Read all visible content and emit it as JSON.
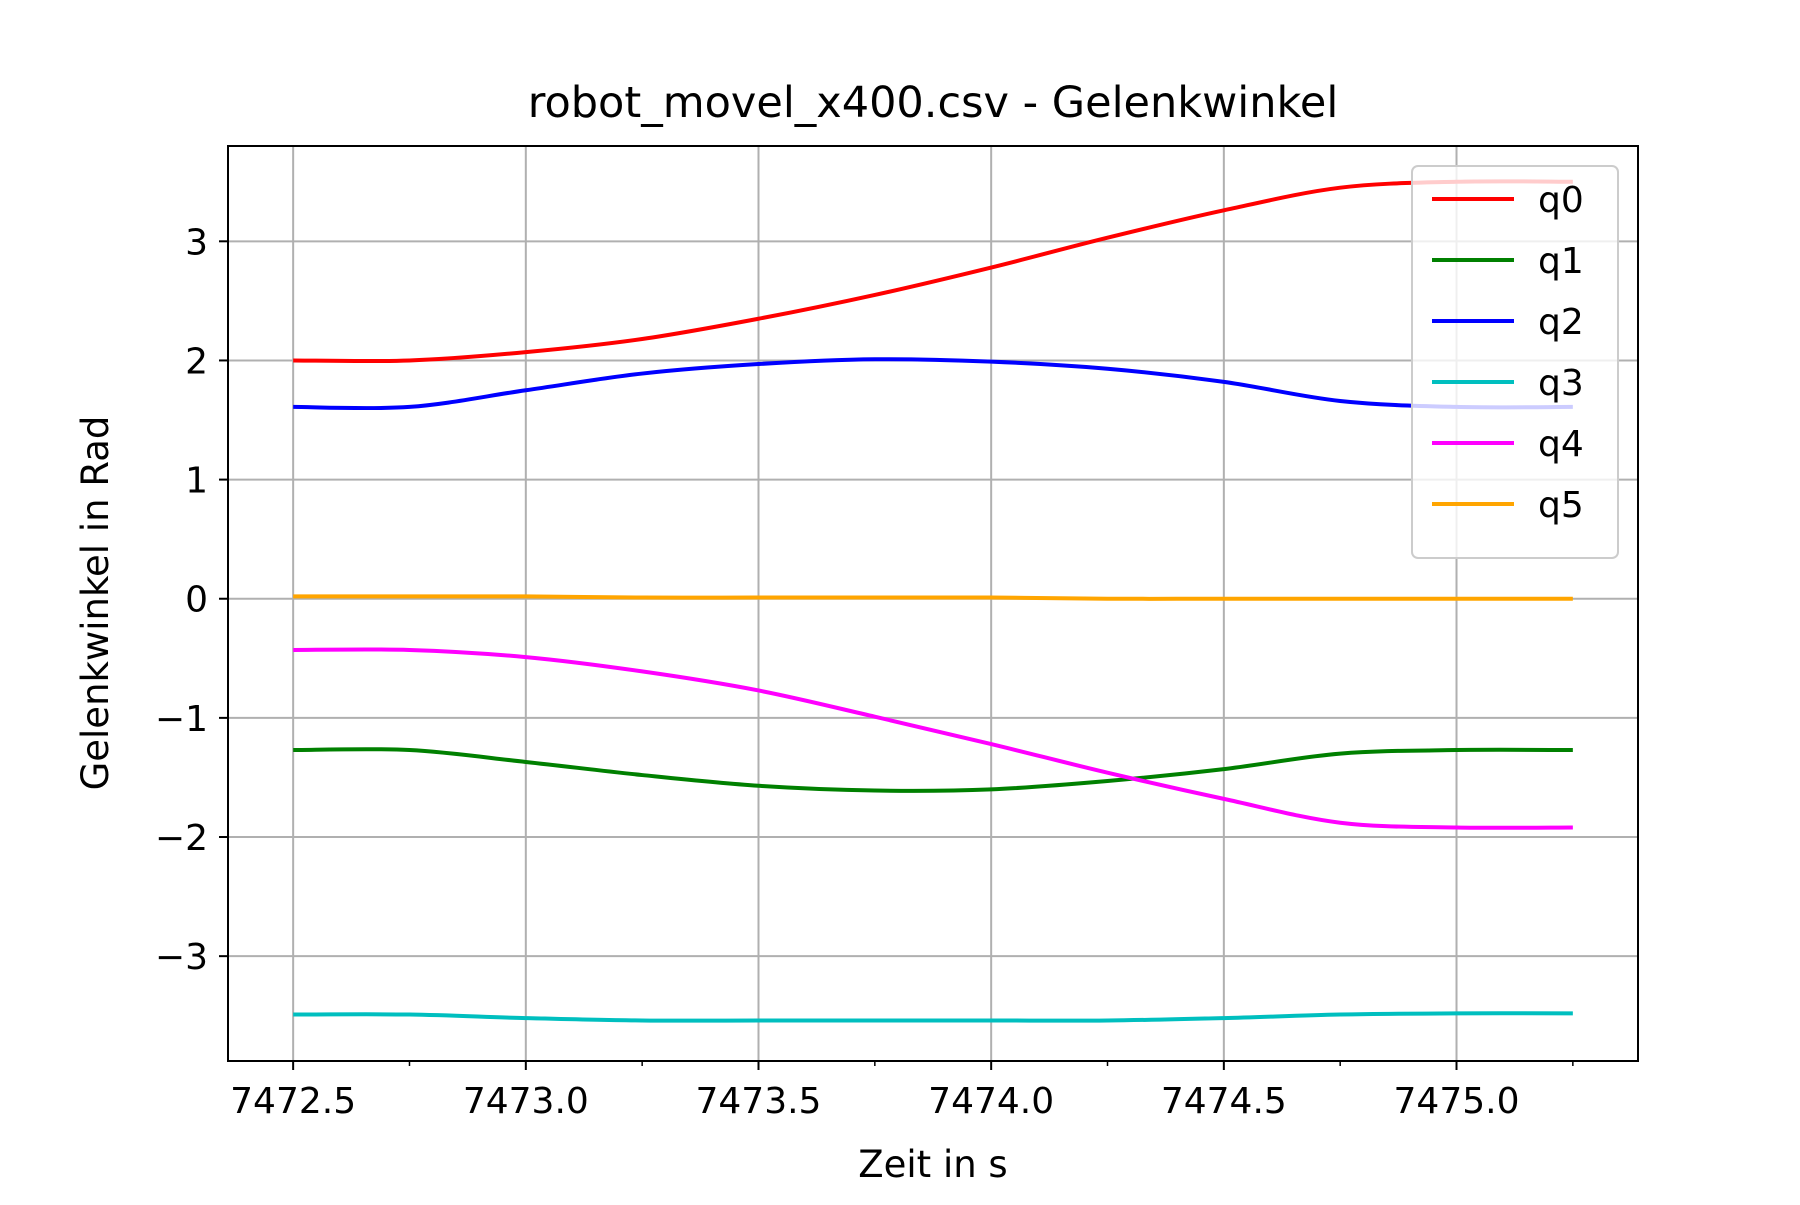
{
  "chart_data": {
    "type": "line",
    "title": "robot_movel_x400.csv - Gelenkwinkel",
    "xlabel": "Zeit in s",
    "ylabel": "Gelenkwinkel in Rad",
    "xlim": [
      7472.36,
      7475.39
    ],
    "ylim": [
      -3.88,
      3.8
    ],
    "xticks": [
      7472.5,
      7473.0,
      7473.5,
      7474.0,
      7474.5,
      7475.0
    ],
    "xtick_labels": [
      "7472.5",
      "7473.0",
      "7473.5",
      "7474.0",
      "7474.5",
      "7475.0"
    ],
    "yticks": [
      -3,
      -2,
      -1,
      0,
      1,
      2,
      3
    ],
    "ytick_labels": [
      "−3",
      "−2",
      "−1",
      "0",
      "1",
      "2",
      "3"
    ],
    "grid": true,
    "legend_position": "top-right",
    "x": [
      7472.5,
      7472.75,
      7473.0,
      7473.25,
      7473.5,
      7473.75,
      7474.0,
      7474.25,
      7474.5,
      7474.75,
      7475.0,
      7475.25
    ],
    "series": [
      {
        "name": "q0",
        "color": "#ff0000",
        "values": [
          2.0,
          2.0,
          2.07,
          2.18,
          2.35,
          2.55,
          2.78,
          3.03,
          3.26,
          3.45,
          3.5,
          3.5
        ]
      },
      {
        "name": "q1",
        "color": "#008000",
        "values": [
          -1.27,
          -1.27,
          -1.37,
          -1.48,
          -1.57,
          -1.61,
          -1.6,
          -1.53,
          -1.43,
          -1.3,
          -1.27,
          -1.27
        ]
      },
      {
        "name": "q2",
        "color": "#0000ff",
        "values": [
          1.61,
          1.61,
          1.75,
          1.89,
          1.97,
          2.01,
          1.99,
          1.93,
          1.82,
          1.66,
          1.61,
          1.61
        ]
      },
      {
        "name": "q3",
        "color": "#00bfbf",
        "values": [
          -3.49,
          -3.49,
          -3.52,
          -3.54,
          -3.54,
          -3.54,
          -3.54,
          -3.54,
          -3.52,
          -3.49,
          -3.48,
          -3.48
        ]
      },
      {
        "name": "q4",
        "color": "#ff00ff",
        "values": [
          -0.43,
          -0.43,
          -0.49,
          -0.61,
          -0.77,
          -0.99,
          -1.22,
          -1.46,
          -1.68,
          -1.88,
          -1.92,
          -1.92
        ]
      },
      {
        "name": "q5",
        "color": "#ffa500",
        "values": [
          0.02,
          0.02,
          0.02,
          0.01,
          0.01,
          0.01,
          0.01,
          0.0,
          0.0,
          0.0,
          0.0,
          0.0
        ]
      }
    ]
  }
}
